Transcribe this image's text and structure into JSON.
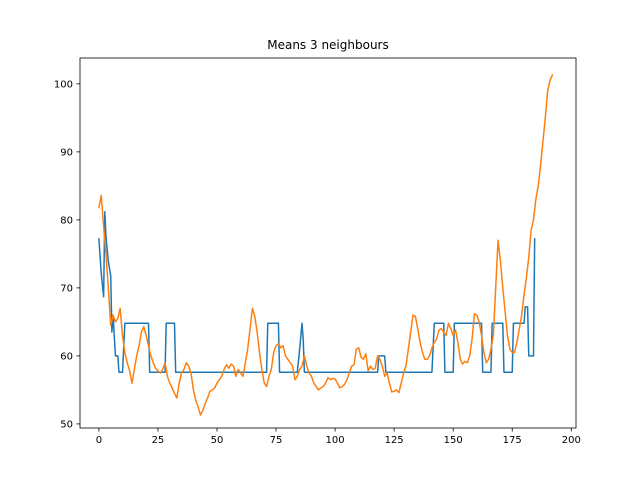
{
  "chart_data": {
    "type": "line",
    "title": "Means 3 neighbours",
    "xlabel": "",
    "ylabel": "",
    "xlim": [
      -8,
      202
    ],
    "ylim": [
      49.4,
      103.8
    ],
    "xticks": [
      0,
      25,
      50,
      75,
      100,
      125,
      150,
      175,
      200
    ],
    "yticks": [
      50,
      60,
      70,
      80,
      90,
      100
    ],
    "grid": false,
    "legend": "none",
    "series": [
      {
        "color": "#1f77b4",
        "step": true,
        "points": [
          [
            0,
            77.2
          ],
          [
            1,
            72.1
          ],
          [
            2,
            68.7
          ],
          [
            2.5,
            81.2
          ],
          [
            3,
            77.5
          ],
          [
            4,
            73.9
          ],
          [
            5,
            71.8
          ],
          [
            5.5,
            63.5
          ],
          [
            6,
            66.0
          ],
          [
            7,
            60.0
          ],
          [
            8,
            60.0
          ],
          [
            8.5,
            57.6
          ],
          [
            10,
            57.6
          ],
          [
            11,
            64.8
          ],
          [
            21,
            64.8
          ],
          [
            21.5,
            57.6
          ],
          [
            28,
            57.6
          ],
          [
            28.5,
            64.8
          ],
          [
            32,
            64.8
          ],
          [
            32.5,
            57.6
          ],
          [
            71,
            57.6
          ],
          [
            71.5,
            64.8
          ],
          [
            76,
            64.8
          ],
          [
            76.5,
            57.6
          ],
          [
            84,
            57.6
          ],
          [
            85,
            61.0
          ],
          [
            86,
            64.8
          ],
          [
            86.5,
            62.5
          ],
          [
            87,
            57.6
          ],
          [
            118,
            57.6
          ],
          [
            118.5,
            60.0
          ],
          [
            121,
            60.0
          ],
          [
            121.5,
            57.6
          ],
          [
            141,
            57.6
          ],
          [
            142,
            64.8
          ],
          [
            146,
            64.8
          ],
          [
            146.5,
            57.6
          ],
          [
            150,
            57.6
          ],
          [
            150.5,
            64.8
          ],
          [
            162,
            64.8
          ],
          [
            162.5,
            57.6
          ],
          [
            166,
            57.6
          ],
          [
            166.5,
            64.8
          ],
          [
            171,
            64.8
          ],
          [
            171.5,
            57.6
          ],
          [
            175,
            57.6
          ],
          [
            175.5,
            64.8
          ],
          [
            180,
            64.8
          ],
          [
            180.5,
            67.2
          ],
          [
            181.5,
            67.2
          ],
          [
            182,
            60.0
          ],
          [
            184,
            60.0
          ],
          [
            184.5,
            77.2
          ]
        ]
      },
      {
        "color": "#ff7f0e",
        "step": false,
        "points": [
          [
            0,
            81.8
          ],
          [
            1,
            83.6
          ],
          [
            2,
            79.0
          ],
          [
            3,
            75.0
          ],
          [
            4,
            70.0
          ],
          [
            5,
            64.5
          ],
          [
            6,
            66.0
          ],
          [
            7,
            65.0
          ],
          [
            8,
            65.5
          ],
          [
            9,
            67.0
          ],
          [
            10,
            63.0
          ],
          [
            11,
            60.5
          ],
          [
            12,
            59.0
          ],
          [
            13,
            57.8
          ],
          [
            14,
            56.0
          ],
          [
            15,
            58.0
          ],
          [
            16,
            60.0
          ],
          [
            17,
            61.5
          ],
          [
            18,
            63.5
          ],
          [
            19,
            64.3
          ],
          [
            20,
            63.0
          ],
          [
            21,
            61.5
          ],
          [
            22,
            60.0
          ],
          [
            23,
            59.0
          ],
          [
            24,
            58.2
          ],
          [
            25,
            57.8
          ],
          [
            26,
            57.5
          ],
          [
            27,
            58.0
          ],
          [
            28,
            59.0
          ],
          [
            29,
            57.0
          ],
          [
            30,
            56.0
          ],
          [
            31,
            55.3
          ],
          [
            32,
            54.5
          ],
          [
            33,
            53.8
          ],
          [
            34,
            56.0
          ],
          [
            35,
            57.5
          ],
          [
            36,
            58.0
          ],
          [
            37,
            59.0
          ],
          [
            38,
            58.5
          ],
          [
            39,
            57.5
          ],
          [
            40,
            55.0
          ],
          [
            41,
            53.5
          ],
          [
            42,
            52.5
          ],
          [
            43,
            51.3
          ],
          [
            44,
            52.0
          ],
          [
            45,
            53.0
          ],
          [
            46,
            53.8
          ],
          [
            47,
            54.8
          ],
          [
            48,
            55.0
          ],
          [
            49,
            55.3
          ],
          [
            50,
            56.0
          ],
          [
            51,
            56.5
          ],
          [
            52,
            57.0
          ],
          [
            53,
            58.0
          ],
          [
            54,
            58.7
          ],
          [
            55,
            58.2
          ],
          [
            56,
            58.8
          ],
          [
            57,
            58.5
          ],
          [
            58,
            57.0
          ],
          [
            59,
            58.0
          ],
          [
            60,
            57.5
          ],
          [
            61,
            57.0
          ],
          [
            62,
            59.0
          ],
          [
            63,
            61.0
          ],
          [
            64,
            64.0
          ],
          [
            65,
            67.0
          ],
          [
            66,
            65.8
          ],
          [
            67,
            63.5
          ],
          [
            68,
            60.5
          ],
          [
            69,
            58.0
          ],
          [
            70,
            56.0
          ],
          [
            71,
            55.5
          ],
          [
            72,
            57.0
          ],
          [
            73,
            58.0
          ],
          [
            74,
            60.5
          ],
          [
            75,
            61.5
          ],
          [
            76,
            61.8
          ],
          [
            77,
            61.2
          ],
          [
            78,
            61.5
          ],
          [
            79,
            60.0
          ],
          [
            80,
            59.5
          ],
          [
            81,
            59.0
          ],
          [
            82,
            58.5
          ],
          [
            83,
            56.5
          ],
          [
            84,
            57.0
          ],
          [
            85,
            58.0
          ],
          [
            86,
            58.5
          ],
          [
            87,
            60.0
          ],
          [
            88,
            58.5
          ],
          [
            89,
            57.5
          ],
          [
            90,
            57.0
          ],
          [
            91,
            56.0
          ],
          [
            92,
            55.5
          ],
          [
            93,
            55.0
          ],
          [
            94,
            55.3
          ],
          [
            95,
            55.5
          ],
          [
            96,
            56.0
          ],
          [
            97,
            56.8
          ],
          [
            98,
            56.5
          ],
          [
            99,
            56.7
          ],
          [
            100,
            56.6
          ],
          [
            101,
            56.0
          ],
          [
            102,
            55.3
          ],
          [
            103,
            55.5
          ],
          [
            104,
            55.8
          ],
          [
            105,
            56.5
          ],
          [
            106,
            57.5
          ],
          [
            107,
            58.5
          ],
          [
            108,
            58.7
          ],
          [
            109,
            61.0
          ],
          [
            110,
            61.2
          ],
          [
            111,
            59.8
          ],
          [
            112,
            59.5
          ],
          [
            113,
            60.3
          ],
          [
            114,
            57.8
          ],
          [
            115,
            58.5
          ],
          [
            116,
            58.0
          ],
          [
            117,
            58.2
          ],
          [
            118,
            60.0
          ],
          [
            119,
            59.5
          ],
          [
            120,
            58.5
          ],
          [
            121,
            57.0
          ],
          [
            122,
            57.5
          ],
          [
            123,
            56.0
          ],
          [
            124,
            54.7
          ],
          [
            125,
            54.8
          ],
          [
            126,
            55.0
          ],
          [
            127,
            54.6
          ],
          [
            128,
            56.0
          ],
          [
            129,
            57.5
          ],
          [
            130,
            58.5
          ],
          [
            131,
            61.0
          ],
          [
            132,
            63.5
          ],
          [
            133,
            66.0
          ],
          [
            134,
            65.8
          ],
          [
            135,
            64.0
          ],
          [
            136,
            62.0
          ],
          [
            137,
            60.5
          ],
          [
            138,
            59.5
          ],
          [
            139,
            59.5
          ],
          [
            140,
            60.0
          ],
          [
            141,
            61.2
          ],
          [
            142,
            62.0
          ],
          [
            143,
            62.5
          ],
          [
            144,
            63.8
          ],
          [
            145,
            64.0
          ],
          [
            146,
            63.5
          ],
          [
            147,
            63.0
          ],
          [
            148,
            64.8
          ],
          [
            149,
            64.0
          ],
          [
            150,
            63.0
          ],
          [
            151,
            63.8
          ],
          [
            152,
            62.0
          ],
          [
            153,
            59.5
          ],
          [
            154,
            58.8
          ],
          [
            155,
            59.2
          ],
          [
            156,
            59.0
          ],
          [
            157,
            60.0
          ],
          [
            158,
            62.5
          ],
          [
            159,
            66.2
          ],
          [
            160,
            66.0
          ],
          [
            161,
            65.0
          ],
          [
            162,
            63.0
          ],
          [
            163,
            60.5
          ],
          [
            164,
            59.0
          ],
          [
            165,
            59.5
          ],
          [
            166,
            61.0
          ],
          [
            167,
            63.0
          ],
          [
            168,
            70.0
          ],
          [
            169,
            77.0
          ],
          [
            170,
            74.0
          ],
          [
            171,
            70.0
          ],
          [
            172,
            66.5
          ],
          [
            173,
            63.0
          ],
          [
            174,
            61.0
          ],
          [
            175,
            60.5
          ],
          [
            176,
            60.5
          ],
          [
            177,
            62.0
          ],
          [
            178,
            64.0
          ],
          [
            179,
            66.0
          ],
          [
            180,
            69.0
          ],
          [
            181,
            71.5
          ],
          [
            182,
            74.5
          ],
          [
            183,
            78.5
          ],
          [
            184,
            80.0
          ],
          [
            185,
            83.0
          ],
          [
            186,
            85.0
          ],
          [
            187,
            88.0
          ],
          [
            188,
            91.5
          ],
          [
            189,
            95.0
          ],
          [
            190,
            99.0
          ],
          [
            191,
            100.5
          ],
          [
            192,
            101.3
          ]
        ]
      }
    ]
  }
}
